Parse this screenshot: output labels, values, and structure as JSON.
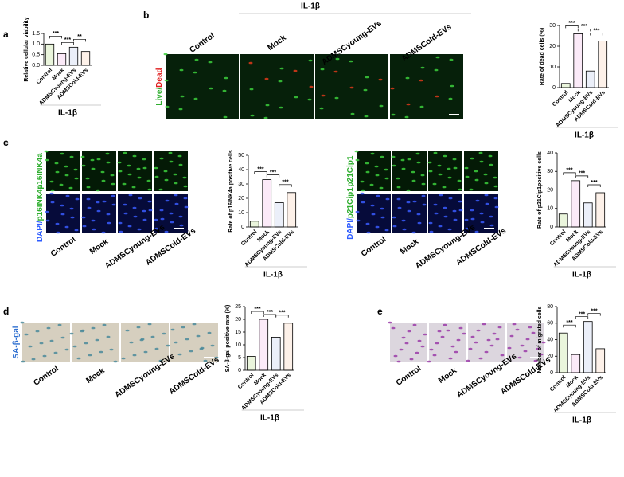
{
  "panel_letters": [
    "a",
    "b",
    "c",
    "d",
    "e"
  ],
  "images": {
    "b": {
      "group_label": "IL-1β",
      "stain": [
        "Live/",
        "Dead"
      ],
      "columns": [
        "Control",
        "Mock",
        "ADMSCyoung-EVs",
        "ADMSCold-EVs"
      ]
    },
    "c_left": {
      "rows": [
        [
          "p16INK4a"
        ],
        [
          "DAPI/",
          "p16INK4a"
        ]
      ],
      "columns": [
        "Control",
        "Mock",
        "ADMSCyoung-EVs",
        "ADMSCold-EVs"
      ]
    },
    "c_right": {
      "rows": [
        [
          "p21Cip1"
        ],
        [
          "DAPI/",
          "p21Cip1"
        ]
      ],
      "columns": [
        "Control",
        "Mock",
        "ADMSCyoung-EVs",
        "ADMSCold-EVs"
      ]
    },
    "d": {
      "stain": [
        "SA-β-gal"
      ],
      "columns": [
        "Control",
        "Mock",
        "ADMSCyoung-EVs",
        "ADMSCold-EVs"
      ]
    },
    "e": {
      "columns": [
        "Control",
        "Mock",
        "ADMSCyoung-EVs",
        "ADMSCold-EVs"
      ]
    }
  },
  "chart_data": [
    {
      "type": "bar",
      "ylabel": "Relative cellular viability",
      "categories": [
        "Control",
        "Mock",
        "ADMSCyoung-EVs",
        "ADMSCold-EVs"
      ],
      "values": [
        1.0,
        0.55,
        0.85,
        0.65
      ],
      "colors": [
        "#8dc63f",
        "#e88ad9",
        "#8ea9db",
        "#f4b183"
      ],
      "ylim": [
        0,
        1.5
      ],
      "yticks": [
        {
          "value": 0,
          "label": "0.0"
        },
        0.5,
        {
          "value": 1,
          "label": "1.0"
        },
        1.5
      ],
      "annotations": [
        "***",
        "***",
        "**"
      ],
      "xlabel": "IL-1β"
    },
    {
      "type": "bar",
      "ylabel": "Rate of dead cells (%)",
      "categories": [
        "Control",
        "Mock",
        "ADMSCyoung-EVs",
        "ADMSCold-EVs"
      ],
      "values": [
        2,
        26,
        8,
        22.5
      ],
      "colors": [
        "#8dc63f",
        "#e88ad9",
        "#8ea9db",
        "#f4b183"
      ],
      "ylim": [
        0,
        30
      ],
      "yticks": [
        0,
        10,
        20,
        30
      ],
      "annotations": [
        "***",
        "***",
        "***"
      ],
      "xlabel": "IL-1β"
    },
    {
      "type": "bar",
      "ylabel": "Rate of p16INK4a positive cells",
      "categories": [
        "Control",
        "Mock",
        "ADMSCyoung-EVs",
        "ADMSCold-EVs"
      ],
      "values": [
        4,
        33,
        17,
        24
      ],
      "colors": [
        "#8dc63f",
        "#e88ad9",
        "#8ea9db",
        "#f4b183"
      ],
      "ylim": [
        0,
        50
      ],
      "yticks": [
        0,
        10,
        20,
        30,
        40,
        50
      ],
      "annotations": [
        "***",
        "***",
        "***"
      ],
      "xlabel": "IL-1β"
    },
    {
      "type": "bar",
      "ylabel": "Rate of p21Cip1positive cells",
      "categories": [
        "Control",
        "Mock",
        "ADMSCyoung-EVs",
        "ADMSCold-EVs"
      ],
      "values": [
        7,
        25,
        13,
        18.5
      ],
      "colors": [
        "#8dc63f",
        "#e88ad9",
        "#8ea9db",
        "#f4b183"
      ],
      "ylim": [
        0,
        40
      ],
      "yticks": [
        0,
        10,
        20,
        30,
        40
      ],
      "annotations": [
        "***",
        "***",
        "***"
      ],
      "xlabel": "IL-1β"
    },
    {
      "type": "bar",
      "ylabel": "SA-β-gal positive rate (%)",
      "categories": [
        "Control",
        "Mock",
        "ADMSCyoung-EVs",
        "ADMSCold-EVs"
      ],
      "values": [
        5.5,
        20,
        13,
        18.5
      ],
      "colors": [
        "#8dc63f",
        "#e88ad9",
        "#8ea9db",
        "#f4b183"
      ],
      "ylim": [
        0,
        25
      ],
      "yticks": [
        0,
        5,
        10,
        15,
        20,
        25
      ],
      "annotations": [
        "***",
        "***",
        "***"
      ],
      "xlabel": "IL-1β"
    },
    {
      "type": "bar",
      "ylabel": "Number of migrated cells",
      "categories": [
        "Control",
        "Mock",
        "ADMSCyoung-EVs",
        "ADMSCold-EVs"
      ],
      "values": [
        48,
        22,
        62,
        29
      ],
      "colors": [
        "#8dc63f",
        "#e88ad9",
        "#8ea9db",
        "#f4b183"
      ],
      "ylim": [
        0,
        80
      ],
      "yticks": [
        0,
        20,
        40,
        60,
        80
      ],
      "annotations": [
        "***",
        "***",
        "***"
      ],
      "xlabel": "IL-1β"
    }
  ]
}
